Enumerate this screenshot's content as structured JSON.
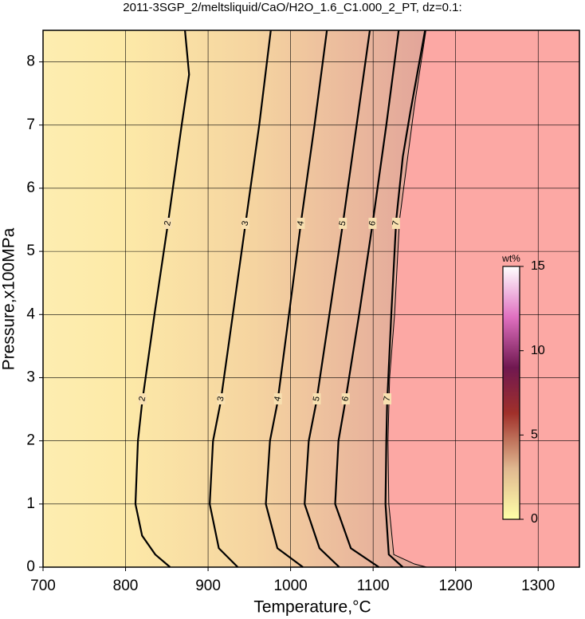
{
  "chart_data": {
    "type": "contour",
    "title": "2011-3SGP_2/meltsliquid/CaO/H2O_1.6_C1.000_2_PT, dz=0.1:",
    "x_label": "Temperature,°C",
    "y_label": "Pressure,x100MPa",
    "xlim": [
      700,
      1350
    ],
    "ylim": [
      0,
      8.5
    ],
    "xticks": [
      700,
      800,
      900,
      1000,
      1100,
      1200,
      1300
    ],
    "yticks": [
      0,
      1,
      2,
      3,
      4,
      5,
      6,
      7,
      8
    ],
    "grid": true,
    "contours": [
      {
        "level": 2,
        "x": [
          854,
          836,
          820,
          812,
          815,
          820,
          835,
          852,
          868,
          877,
          872
        ],
        "y": [
          0,
          0.2,
          0.5,
          1,
          2,
          2.6,
          4,
          5.5,
          7,
          7.8,
          8.5
        ]
      },
      {
        "level": 3,
        "x": [
          936,
          913,
          902,
          906,
          915,
          930,
          946,
          962,
          976
        ],
        "y": [
          0,
          0.3,
          1,
          2,
          2.6,
          4,
          5.5,
          7,
          8.5
        ]
      },
      {
        "level": 4,
        "x": [
          1015,
          984,
          970,
          975,
          984,
          998,
          1013,
          1029,
          1044
        ],
        "y": [
          0,
          0.3,
          1,
          2,
          2.6,
          4,
          5.5,
          7,
          8.5
        ]
      },
      {
        "level": 5,
        "x": [
          1059,
          1035,
          1017,
          1022,
          1031,
          1047,
          1064,
          1080,
          1096
        ],
        "y": [
          0,
          0.3,
          1,
          2,
          2.6,
          4,
          5.5,
          7,
          8.5
        ]
      },
      {
        "level": 6,
        "x": [
          1107,
          1073,
          1054,
          1058,
          1066,
          1083,
          1100,
          1116,
          1131
        ],
        "y": [
          0,
          0.3,
          1,
          2,
          2.6,
          4,
          5.5,
          7,
          8.5
        ]
      },
      {
        "level": 7,
        "x": [
          1136,
          1119,
          1115,
          1116,
          1117,
          1122,
          1128,
          1136,
          1145,
          1163
        ],
        "y": [
          0,
          0.2,
          1,
          2,
          2.6,
          4,
          5.5,
          6.5,
          7.2,
          8.5
        ]
      }
    ],
    "melt_boundary": {
      "x": [
        1165,
        1150,
        1125,
        1119,
        1118,
        1120,
        1126,
        1132,
        1140,
        1150,
        1164
      ],
      "y": [
        0,
        0.05,
        0.2,
        1,
        2,
        3,
        4,
        5.5,
        6.3,
        7.3,
        8.5
      ]
    },
    "colorbar": {
      "label": "wt%",
      "lim": [
        0,
        15
      ],
      "ticks": [
        0,
        5,
        10,
        15
      ]
    }
  }
}
